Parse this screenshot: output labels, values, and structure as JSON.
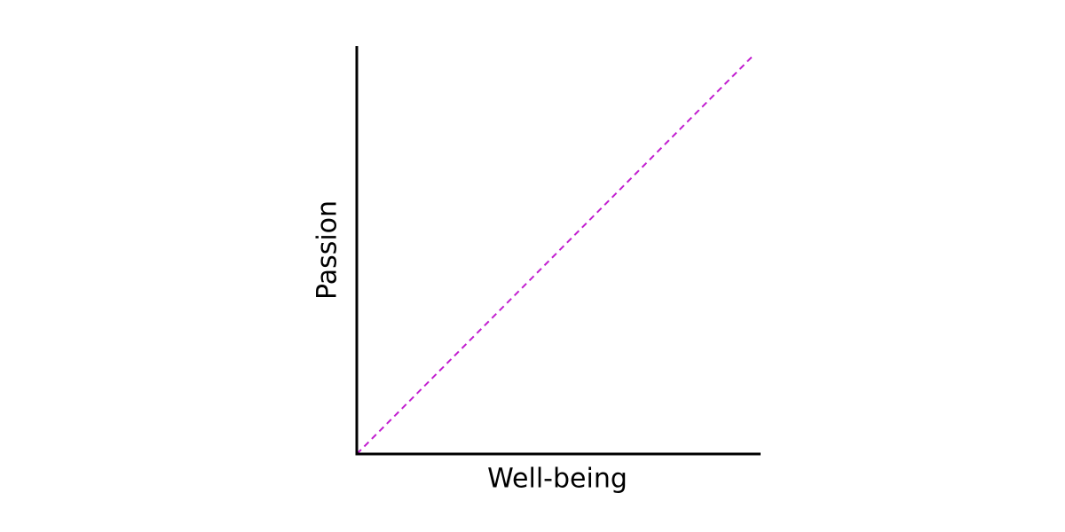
{
  "chart_data": {
    "type": "line",
    "x_label": "Well-being",
    "y_label": "Passion",
    "x": [
      0,
      0.985
    ],
    "series": [
      {
        "color": "#c21fd0",
        "values": [
          0,
          0.98
        ]
      }
    ],
    "xlim": [
      0,
      1
    ],
    "ylim": [
      0,
      1
    ],
    "line_style": "dashed"
  }
}
